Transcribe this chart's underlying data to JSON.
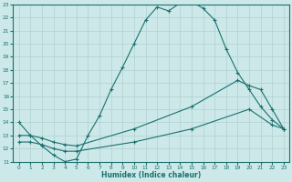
{
  "xlabel": "Humidex (Indice chaleur)",
  "bg_color": "#cde8e8",
  "line_color": "#1a7070",
  "grid_color": "#b0d0d0",
  "xlim": [
    -0.5,
    23.5
  ],
  "ylim": [
    11,
    23
  ],
  "xticks": [
    0,
    1,
    2,
    3,
    4,
    5,
    6,
    7,
    8,
    9,
    10,
    11,
    12,
    13,
    14,
    15,
    16,
    17,
    18,
    19,
    20,
    21,
    22,
    23
  ],
  "yticks": [
    11,
    12,
    13,
    14,
    15,
    16,
    17,
    18,
    19,
    20,
    21,
    22,
    23
  ],
  "line1_x": [
    0,
    1,
    2,
    3,
    4,
    5,
    6,
    7,
    8,
    9,
    10,
    11,
    12,
    13,
    14,
    15,
    16,
    17,
    18,
    19,
    20,
    21,
    22,
    23
  ],
  "line1_y": [
    14.0,
    13.0,
    12.2,
    11.5,
    11.0,
    11.2,
    13.0,
    14.5,
    16.5,
    18.2,
    20.0,
    21.8,
    22.8,
    22.5,
    23.1,
    23.2,
    22.7,
    21.8,
    19.6,
    17.8,
    16.5,
    15.2,
    14.2,
    13.5
  ],
  "line2_x": [
    0,
    1,
    2,
    3,
    4,
    5,
    10,
    15,
    19,
    20,
    21,
    22,
    23
  ],
  "line2_y": [
    13.0,
    13.0,
    12.8,
    12.5,
    12.3,
    12.2,
    13.5,
    15.2,
    17.2,
    16.8,
    16.5,
    15.0,
    13.5
  ],
  "line3_x": [
    0,
    1,
    2,
    3,
    4,
    5,
    10,
    15,
    20,
    22,
    23
  ],
  "line3_y": [
    12.5,
    12.5,
    12.3,
    12.0,
    11.8,
    11.8,
    12.5,
    13.5,
    15.0,
    13.8,
    13.5
  ]
}
